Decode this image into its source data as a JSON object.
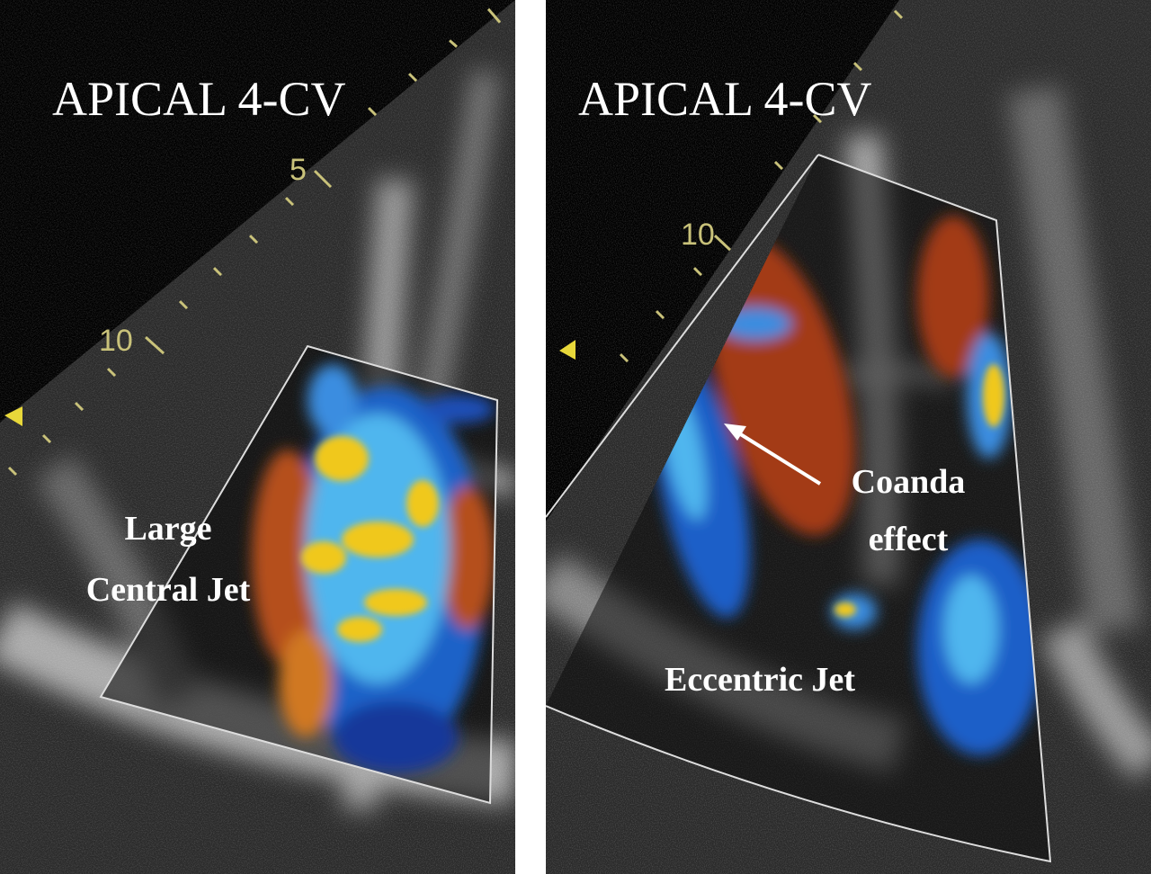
{
  "panels": [
    {
      "title": "APICAL 4-CV",
      "depth_labels": [
        "5",
        "10"
      ],
      "annotation": [
        "Large",
        "Central Jet"
      ]
    },
    {
      "title": "APICAL 4-CV",
      "depth_labels": [
        "10"
      ],
      "annotation": [
        "Coanda",
        "effect"
      ],
      "jet_label": "Eccentric Jet"
    }
  ]
}
